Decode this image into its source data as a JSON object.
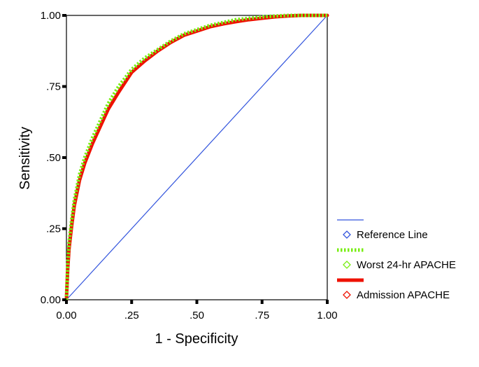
{
  "chart_data": {
    "type": "line",
    "title": "",
    "xlabel": "1 - Specificity",
    "ylabel": "Sensitivity",
    "xlim": [
      0,
      1
    ],
    "ylim": [
      0,
      1
    ],
    "x_ticks": [
      "0.00",
      ".25",
      ".50",
      ".75",
      "1.00"
    ],
    "y_ticks": [
      "0.00",
      ".25",
      ".50",
      ".75",
      "1.00"
    ],
    "grid": false,
    "legend_position": "right",
    "series": [
      {
        "name": "Reference Line",
        "color": "#3355dd",
        "style": "solid-thin",
        "x": [
          0,
          1
        ],
        "y": [
          0,
          1
        ]
      },
      {
        "name": "Worst 24-hr APACHE",
        "color": "#77ee11",
        "style": "dotted-thick",
        "x": [
          0,
          0.005,
          0.01,
          0.02,
          0.03,
          0.05,
          0.07,
          0.1,
          0.13,
          0.16,
          0.2,
          0.25,
          0.3,
          0.35,
          0.4,
          0.45,
          0.5,
          0.55,
          0.6,
          0.65,
          0.7,
          0.75,
          0.8,
          0.85,
          0.9,
          0.95,
          1.0
        ],
        "y": [
          0,
          0.13,
          0.2,
          0.28,
          0.35,
          0.44,
          0.5,
          0.57,
          0.63,
          0.69,
          0.75,
          0.81,
          0.85,
          0.88,
          0.91,
          0.935,
          0.95,
          0.965,
          0.975,
          0.985,
          0.99,
          0.995,
          0.998,
          1.0,
          1.0,
          1.0,
          1.0
        ]
      },
      {
        "name": "Admission APACHE",
        "color": "#ee1100",
        "style": "solid-thick",
        "x": [
          0,
          0.005,
          0.01,
          0.02,
          0.03,
          0.05,
          0.07,
          0.1,
          0.13,
          0.16,
          0.2,
          0.25,
          0.3,
          0.35,
          0.4,
          0.45,
          0.5,
          0.55,
          0.6,
          0.65,
          0.7,
          0.75,
          0.8,
          0.85,
          0.9,
          0.95,
          1.0
        ],
        "y": [
          0,
          0.11,
          0.18,
          0.26,
          0.33,
          0.42,
          0.48,
          0.55,
          0.61,
          0.67,
          0.73,
          0.8,
          0.84,
          0.875,
          0.905,
          0.93,
          0.945,
          0.96,
          0.97,
          0.978,
          0.985,
          0.99,
          0.995,
          0.998,
          1.0,
          1.0,
          1.0
        ]
      }
    ]
  }
}
